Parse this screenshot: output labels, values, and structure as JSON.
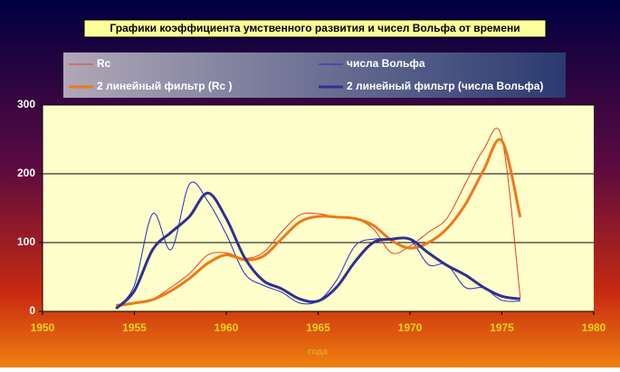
{
  "chart_data": {
    "type": "line",
    "title": "Графики коэффициента умственного развития и чисел Вольфа от времени",
    "x_label": "года",
    "x": [
      1954,
      1955,
      1956,
      1957,
      1958,
      1959,
      1960,
      1961,
      1962,
      1963,
      1964,
      1965,
      1966,
      1967,
      1968,
      1969,
      1970,
      1971,
      1972,
      1973,
      1974,
      1975,
      1976
    ],
    "series": [
      {
        "name": "Rc",
        "color": "#e8401a",
        "width": 1,
        "values": [
          10,
          12,
          18,
          35,
          55,
          82,
          85,
          77,
          85,
          115,
          140,
          142,
          137,
          135,
          120,
          85,
          95,
          115,
          135,
          185,
          235,
          252,
          20
        ]
      },
      {
        "name": "числа Вольфа",
        "color": "#2a2ac8",
        "width": 1,
        "values": [
          5,
          38,
          142,
          90,
          185,
          160,
          112,
          55,
          38,
          28,
          12,
          15,
          45,
          95,
          105,
          105,
          105,
          68,
          68,
          35,
          34,
          16,
          15
        ]
      },
      {
        "name": "2 линейный фильтр (Rc   )",
        "color": "#f07818",
        "width": 3,
        "values": [
          8,
          12,
          17,
          30,
          48,
          70,
          82,
          75,
          80,
          105,
          130,
          138,
          137,
          135,
          125,
          103,
          92,
          100,
          120,
          155,
          205,
          248,
          137
        ]
      },
      {
        "name": "2 линейный фильтр (числа Вольфа)",
        "color": "#303090",
        "width": 3,
        "values": [
          4,
          30,
          90,
          115,
          138,
          172,
          135,
          78,
          45,
          33,
          18,
          15,
          35,
          72,
          100,
          105,
          105,
          85,
          67,
          53,
          35,
          22,
          18
        ]
      }
    ],
    "xlim": [
      1950,
      1980
    ],
    "xticks": [
      1950,
      1955,
      1960,
      1965,
      1970,
      1975,
      1980
    ],
    "ylim": [
      0,
      300
    ],
    "yticks": [
      0,
      100,
      200,
      300
    ],
    "grid": true
  }
}
